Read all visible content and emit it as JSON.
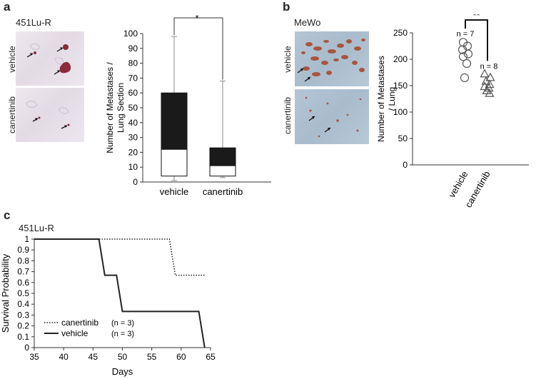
{
  "panel_a": {
    "letter": "a",
    "cell_line": "451Lu-R",
    "image_labels": [
      "vehicle",
      "canertinib"
    ],
    "significance": "*"
  },
  "panel_b": {
    "letter": "b",
    "cell_line": "MeWo",
    "image_labels": [
      "vehicle",
      "canertinib"
    ],
    "significance": "**",
    "n_labels": [
      "n = 7",
      "n = 8"
    ]
  },
  "panel_c": {
    "letter": "c",
    "cell_line": "451Lu-R",
    "legend": [
      {
        "name": "canertinib",
        "n": "(n = 3)",
        "style": "dotted"
      },
      {
        "name": "vehicle",
        "n": "(n = 3)",
        "style": "solid"
      }
    ]
  },
  "colors": {
    "bar_fill": "#1a1a1a",
    "line": "#222222",
    "marker_edge": "#555555",
    "stain": "#8a2a3a"
  },
  "icons": [
    "arrow-icon"
  ],
  "chart_data": [
    {
      "id": "box_a",
      "type": "box",
      "title": "",
      "xlabel": "",
      "ylabel": "Number of Metastases / Lung Section",
      "ylim": [
        0,
        100
      ],
      "yticks": [
        0,
        10,
        20,
        30,
        40,
        50,
        60,
        70,
        80,
        90,
        100
      ],
      "categories": [
        "vehicle",
        "canertinib"
      ],
      "boxes": [
        {
          "name": "vehicle",
          "min": 1,
          "q1": 4,
          "median": 22,
          "q3": 60,
          "max": 98
        },
        {
          "name": "canertinib",
          "min": 3,
          "q1": 4,
          "median": 11,
          "q3": 23,
          "max": 68
        }
      ]
    },
    {
      "id": "dot_b",
      "type": "scatter",
      "title": "",
      "xlabel": "",
      "ylabel": "Number of Metastases / Lung",
      "ylim": [
        0,
        250
      ],
      "yticks": [
        0,
        50,
        100,
        150,
        200,
        250
      ],
      "categories": [
        "vehicle",
        "canertinib"
      ],
      "series": [
        {
          "name": "vehicle",
          "marker": "circle",
          "values": [
            232,
            225,
            218,
            210,
            205,
            192,
            165
          ]
        },
        {
          "name": "canertinib",
          "marker": "triangle",
          "values": [
            172,
            165,
            158,
            152,
            148,
            145,
            140,
            135
          ]
        }
      ]
    },
    {
      "id": "km_c",
      "type": "line",
      "title": "",
      "xlabel": "Days",
      "ylabel": "Survival Probability",
      "xlim": [
        35,
        65
      ],
      "ylim": [
        0,
        1
      ],
      "xticks": [
        35,
        40,
        45,
        50,
        55,
        60,
        65
      ],
      "yticks": [
        0,
        0.1,
        0.2,
        0.3,
        0.4,
        0.5,
        0.6,
        0.7,
        0.8,
        0.9,
        1
      ],
      "series": [
        {
          "name": "canertinib",
          "style": "dotted",
          "x": [
            35,
            58,
            59,
            64
          ],
          "y": [
            1,
            1,
            0.667,
            0.667
          ]
        },
        {
          "name": "vehicle",
          "style": "solid",
          "x": [
            35,
            46,
            47,
            49,
            50,
            63,
            64
          ],
          "y": [
            1,
            1,
            0.667,
            0.667,
            0.333,
            0.333,
            0
          ]
        }
      ]
    }
  ]
}
